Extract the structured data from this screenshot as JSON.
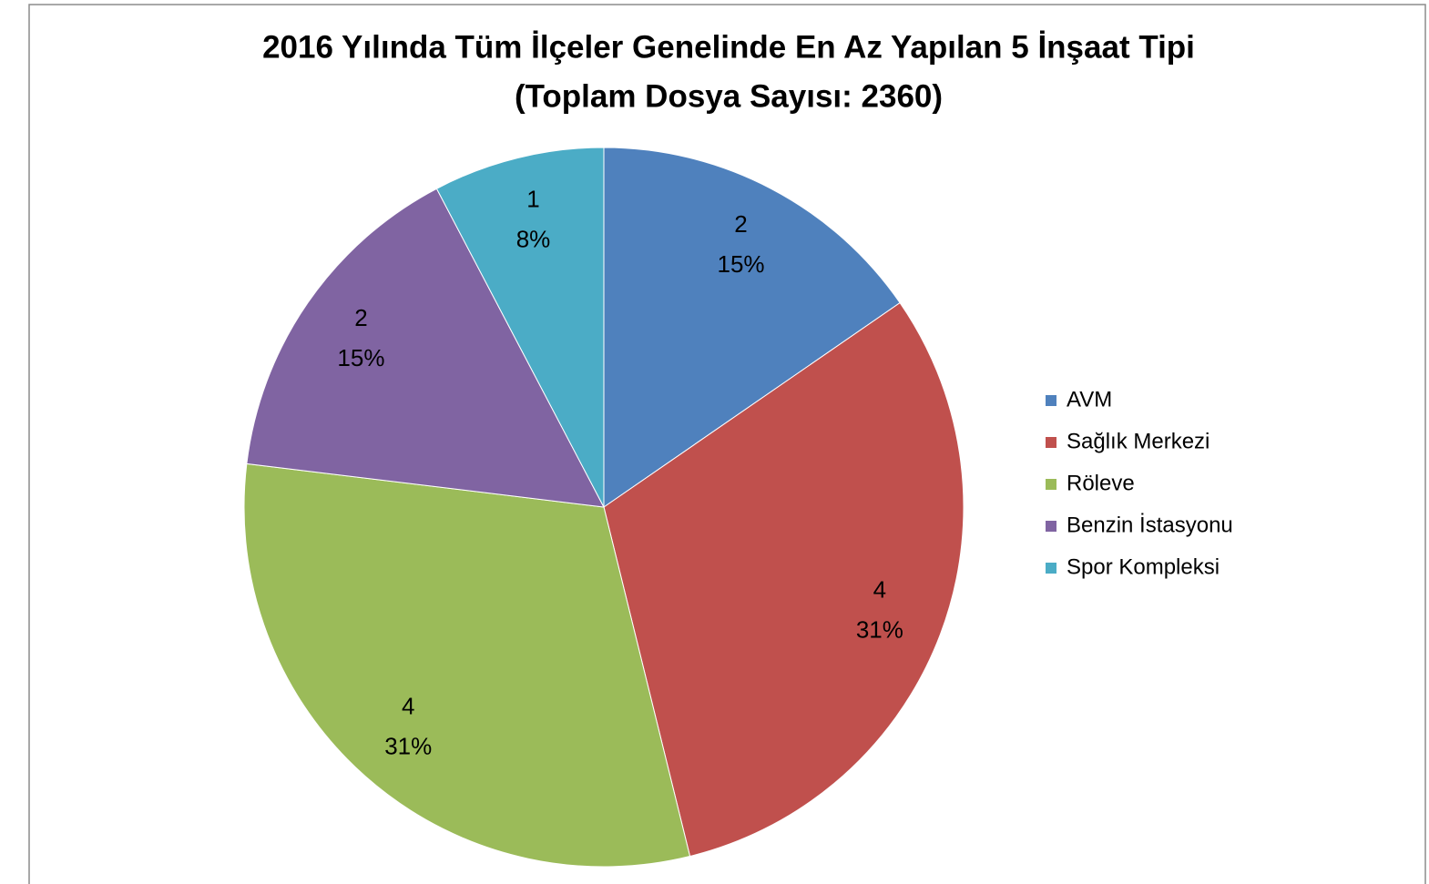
{
  "chart_data": {
    "type": "pie",
    "title": [
      "2016 Yılında Tüm İlçeler Genelinde  En Az Yapılan 5 İnşaat Tipi",
      "(Toplam Dosya Sayısı: 2360)"
    ],
    "categories": [
      "AVM",
      "Sağlık Merkezi",
      "Röleve",
      "Benzin İstasyonu",
      "Spor Kompleksi"
    ],
    "values": [
      2,
      4,
      4,
      2,
      1
    ],
    "percent_labels": [
      "15%",
      "31%",
      "31%",
      "15%",
      "8%"
    ],
    "colors": [
      "#4f81bd",
      "#c0504d",
      "#9bbb59",
      "#8064a2",
      "#4bacc6"
    ],
    "legend": "right"
  }
}
